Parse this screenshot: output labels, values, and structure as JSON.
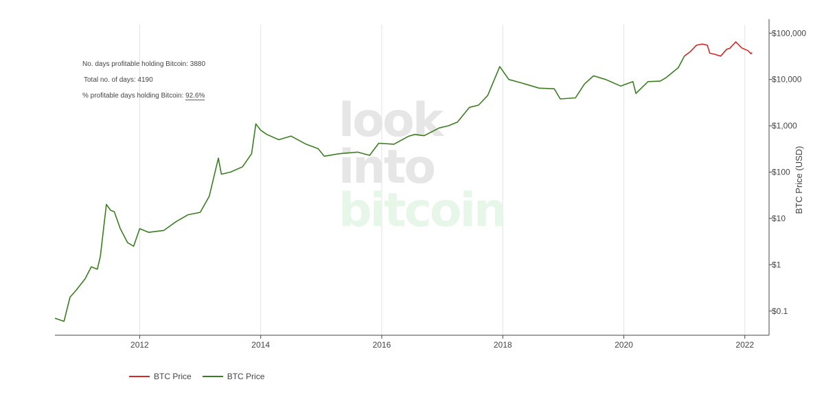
{
  "annotations": {
    "line1": "No. days profitable holding Bitcoin: 3880",
    "line2": "Total no. of days: 4190",
    "line3_label": "% profitable days holding Bitcoin: ",
    "line3_value": "92.6%"
  },
  "watermark": {
    "word1": "look",
    "word2": "into",
    "word3": "bitcoin",
    "color_gray": "#e6e6e6",
    "color_green": "#e6f7ea"
  },
  "legend": {
    "items": [
      {
        "label": "BTC Price",
        "color": "#d62728"
      },
      {
        "label": "BTC Price",
        "color": "#3a7d1e"
      }
    ]
  },
  "chart_data": {
    "type": "line",
    "ylabel": "BTC Price (USD)",
    "yscale": "log",
    "ylim": [
      0.03,
      200000
    ],
    "xlim": [
      2010.6,
      2022.4
    ],
    "x_ticks": [
      2012,
      2014,
      2016,
      2018,
      2020,
      2022
    ],
    "x_tick_labels": [
      "2012",
      "2014",
      "2016",
      "2018",
      "2020",
      "2022"
    ],
    "y_ticks": [
      0.1,
      1,
      10,
      100,
      1000,
      10000,
      100000
    ],
    "y_tick_labels": [
      "$0.1",
      "$1",
      "$10",
      "$100",
      "$1,000",
      "$10,000",
      "$100,000"
    ],
    "grid": "vertical",
    "legend_position": "bottom-left",
    "series": [
      {
        "name": "BTC Price",
        "color": "#3a7d1e",
        "points": [
          [
            2010.6,
            0.07
          ],
          [
            2010.75,
            0.06
          ],
          [
            2010.85,
            0.2
          ],
          [
            2010.95,
            0.28
          ],
          [
            2011.1,
            0.5
          ],
          [
            2011.2,
            0.9
          ],
          [
            2011.3,
            0.8
          ],
          [
            2011.35,
            1.5
          ],
          [
            2011.45,
            20
          ],
          [
            2011.52,
            15
          ],
          [
            2011.58,
            14
          ],
          [
            2011.68,
            6
          ],
          [
            2011.8,
            3
          ],
          [
            2011.9,
            2.5
          ],
          [
            2012.0,
            6
          ],
          [
            2012.15,
            5
          ],
          [
            2012.4,
            5.5
          ],
          [
            2012.6,
            8.5
          ],
          [
            2012.8,
            12
          ],
          [
            2013.0,
            13.5
          ],
          [
            2013.15,
            30
          ],
          [
            2013.3,
            200
          ],
          [
            2013.35,
            90
          ],
          [
            2013.5,
            100
          ],
          [
            2013.7,
            130
          ],
          [
            2013.85,
            250
          ],
          [
            2013.92,
            1100
          ],
          [
            2014.0,
            800
          ],
          [
            2014.1,
            650
          ],
          [
            2014.3,
            500
          ],
          [
            2014.5,
            600
          ],
          [
            2014.75,
            400
          ],
          [
            2014.95,
            320
          ],
          [
            2015.05,
            220
          ],
          [
            2015.3,
            250
          ],
          [
            2015.6,
            270
          ],
          [
            2015.8,
            230
          ],
          [
            2015.95,
            420
          ],
          [
            2016.2,
            400
          ],
          [
            2016.45,
            600
          ],
          [
            2016.55,
            650
          ],
          [
            2016.7,
            610
          ],
          [
            2016.95,
            900
          ],
          [
            2017.1,
            1000
          ],
          [
            2017.25,
            1200
          ],
          [
            2017.45,
            2500
          ],
          [
            2017.6,
            2800
          ],
          [
            2017.75,
            4500
          ],
          [
            2017.95,
            19000
          ],
          [
            2018.1,
            10000
          ],
          [
            2018.3,
            8500
          ],
          [
            2018.6,
            6500
          ],
          [
            2018.85,
            6300
          ],
          [
            2018.95,
            3800
          ],
          [
            2019.2,
            4000
          ],
          [
            2019.35,
            8000
          ],
          [
            2019.5,
            12000
          ],
          [
            2019.7,
            10000
          ],
          [
            2019.95,
            7200
          ],
          [
            2020.15,
            9000
          ],
          [
            2020.2,
            5000
          ],
          [
            2020.4,
            9000
          ],
          [
            2020.6,
            9200
          ],
          [
            2020.7,
            11000
          ],
          [
            2020.9,
            18000
          ],
          [
            2021.0,
            32000
          ]
        ]
      },
      {
        "name": "BTC Price",
        "color": "#d62728",
        "points": [
          [
            2021.0,
            32000
          ],
          [
            2021.1,
            40000
          ],
          [
            2021.2,
            55000
          ],
          [
            2021.3,
            58000
          ],
          [
            2021.38,
            55000
          ],
          [
            2021.42,
            37000
          ],
          [
            2021.5,
            35000
          ],
          [
            2021.6,
            32000
          ],
          [
            2021.7,
            45000
          ],
          [
            2021.75,
            47000
          ],
          [
            2021.85,
            65000
          ],
          [
            2021.95,
            48000
          ],
          [
            2022.05,
            42000
          ],
          [
            2022.1,
            36000
          ],
          [
            2022.12,
            38000
          ]
        ]
      }
    ]
  }
}
